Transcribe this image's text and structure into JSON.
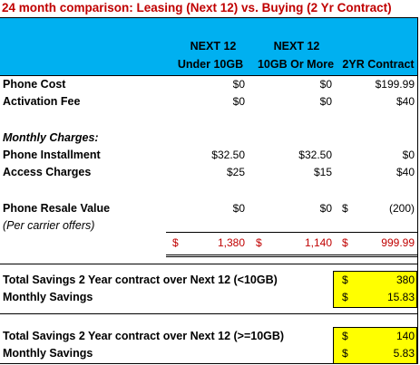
{
  "title": "24 month comparison: Leasing (Next 12) vs. Buying (2 Yr Contract)",
  "header": {
    "col1_line1": "NEXT 12",
    "col1_line2": "Under 10GB",
    "col2_line1": "NEXT 12",
    "col2_line2": "10GB Or More",
    "col3_line2": "2YR Contract"
  },
  "rows": {
    "phone_cost": {
      "label": "Phone Cost",
      "c1": "$0",
      "c2": "$0",
      "c3": "$199.99"
    },
    "activation": {
      "label": "Activation Fee",
      "c1": "$0",
      "c2": "$0",
      "c3": "$40"
    },
    "monthly_header": {
      "label": "Monthly Charges:"
    },
    "installment": {
      "label": "Phone Installment",
      "c1": "$32.50",
      "c2": "$32.50",
      "c3": "$0"
    },
    "access": {
      "label": "Access Charges",
      "c1": "$25",
      "c2": "$15",
      "c3": "$40"
    },
    "resale": {
      "label": "Phone Resale Value",
      "c1": "$0",
      "c2": "$0",
      "c3_dollar": "$",
      "c3": "(200)"
    },
    "resale_note": {
      "label": "(Per carrier offers)"
    },
    "totals": {
      "d1": "$",
      "c1": "1,380",
      "d2": "$",
      "c2": "1,140",
      "d3": "$",
      "c3": "999.99"
    }
  },
  "savings_under": {
    "total_label": "Total Savings 2 Year contract over Next 12 (<10GB)",
    "total_dollar": "$",
    "total_value": "380",
    "monthly_label": "Monthly Savings",
    "monthly_dollar": "$",
    "monthly_value": "15.83"
  },
  "savings_over": {
    "total_label": "Total Savings 2 Year contract over Next 12 (>=10GB)",
    "total_dollar": "$",
    "total_value": "140",
    "monthly_label": "Monthly Savings",
    "monthly_dollar": "$",
    "monthly_value": "5.83"
  },
  "colors": {
    "title": "#c00000",
    "header_band": "#00b0f0",
    "highlight": "#ffff00",
    "negative": "#c00000"
  }
}
